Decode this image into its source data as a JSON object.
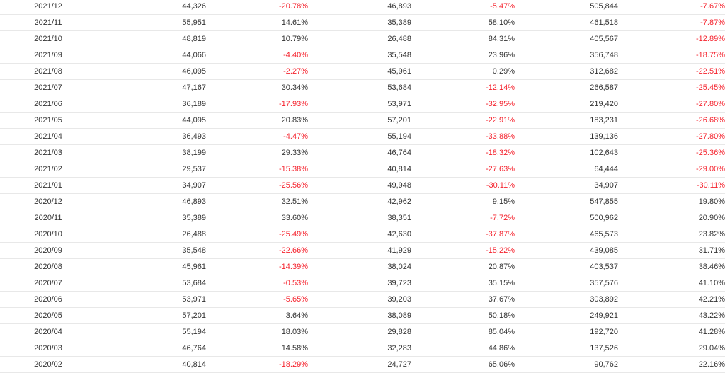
{
  "table": {
    "rows": [
      {
        "month": "2021/12",
        "v1": "44,326",
        "c1": "-20.78%",
        "v2": "46,893",
        "c2": "-5.47%",
        "v3": "505,844",
        "c3": "-7.67%"
      },
      {
        "month": "2021/11",
        "v1": "55,951",
        "c1": "14.61%",
        "v2": "35,389",
        "c2": "58.10%",
        "v3": "461,518",
        "c3": "-7.87%"
      },
      {
        "month": "2021/10",
        "v1": "48,819",
        "c1": "10.79%",
        "v2": "26,488",
        "c2": "84.31%",
        "v3": "405,567",
        "c3": "-12.89%"
      },
      {
        "month": "2021/09",
        "v1": "44,066",
        "c1": "-4.40%",
        "v2": "35,548",
        "c2": "23.96%",
        "v3": "356,748",
        "c3": "-18.75%"
      },
      {
        "month": "2021/08",
        "v1": "46,095",
        "c1": "-2.27%",
        "v2": "45,961",
        "c2": "0.29%",
        "v3": "312,682",
        "c3": "-22.51%"
      },
      {
        "month": "2021/07",
        "v1": "47,167",
        "c1": "30.34%",
        "v2": "53,684",
        "c2": "-12.14%",
        "v3": "266,587",
        "c3": "-25.45%"
      },
      {
        "month": "2021/06",
        "v1": "36,189",
        "c1": "-17.93%",
        "v2": "53,971",
        "c2": "-32.95%",
        "v3": "219,420",
        "c3": "-27.80%"
      },
      {
        "month": "2021/05",
        "v1": "44,095",
        "c1": "20.83%",
        "v2": "57,201",
        "c2": "-22.91%",
        "v3": "183,231",
        "c3": "-26.68%"
      },
      {
        "month": "2021/04",
        "v1": "36,493",
        "c1": "-4.47%",
        "v2": "55,194",
        "c2": "-33.88%",
        "v3": "139,136",
        "c3": "-27.80%"
      },
      {
        "month": "2021/03",
        "v1": "38,199",
        "c1": "29.33%",
        "v2": "46,764",
        "c2": "-18.32%",
        "v3": "102,643",
        "c3": "-25.36%"
      },
      {
        "month": "2021/02",
        "v1": "29,537",
        "c1": "-15.38%",
        "v2": "40,814",
        "c2": "-27.63%",
        "v3": "64,444",
        "c3": "-29.00%"
      },
      {
        "month": "2021/01",
        "v1": "34,907",
        "c1": "-25.56%",
        "v2": "49,948",
        "c2": "-30.11%",
        "v3": "34,907",
        "c3": "-30.11%"
      },
      {
        "month": "2020/12",
        "v1": "46,893",
        "c1": "32.51%",
        "v2": "42,962",
        "c2": "9.15%",
        "v3": "547,855",
        "c3": "19.80%"
      },
      {
        "month": "2020/11",
        "v1": "35,389",
        "c1": "33.60%",
        "v2": "38,351",
        "c2": "-7.72%",
        "v3": "500,962",
        "c3": "20.90%"
      },
      {
        "month": "2020/10",
        "v1": "26,488",
        "c1": "-25.49%",
        "v2": "42,630",
        "c2": "-37.87%",
        "v3": "465,573",
        "c3": "23.82%"
      },
      {
        "month": "2020/09",
        "v1": "35,548",
        "c1": "-22.66%",
        "v2": "41,929",
        "c2": "-15.22%",
        "v3": "439,085",
        "c3": "31.71%"
      },
      {
        "month": "2020/08",
        "v1": "45,961",
        "c1": "-14.39%",
        "v2": "38,024",
        "c2": "20.87%",
        "v3": "403,537",
        "c3": "38.46%"
      },
      {
        "month": "2020/07",
        "v1": "53,684",
        "c1": "-0.53%",
        "v2": "39,723",
        "c2": "35.15%",
        "v3": "357,576",
        "c3": "41.10%"
      },
      {
        "month": "2020/06",
        "v1": "53,971",
        "c1": "-5.65%",
        "v2": "39,203",
        "c2": "37.67%",
        "v3": "303,892",
        "c3": "42.21%"
      },
      {
        "month": "2020/05",
        "v1": "57,201",
        "c1": "3.64%",
        "v2": "38,089",
        "c2": "50.18%",
        "v3": "249,921",
        "c3": "43.22%"
      },
      {
        "month": "2020/04",
        "v1": "55,194",
        "c1": "18.03%",
        "v2": "29,828",
        "c2": "85.04%",
        "v3": "192,720",
        "c3": "41.28%"
      },
      {
        "month": "2020/03",
        "v1": "46,764",
        "c1": "14.58%",
        "v2": "32,283",
        "c2": "44.86%",
        "v3": "137,526",
        "c3": "29.04%"
      },
      {
        "month": "2020/02",
        "v1": "40,814",
        "c1": "-18.29%",
        "v2": "24,727",
        "c2": "65.06%",
        "v3": "90,762",
        "c3": "22.16%"
      }
    ]
  },
  "colors": {
    "text": "#333333",
    "negative": "#f5222d",
    "border": "#e8e8e8"
  }
}
